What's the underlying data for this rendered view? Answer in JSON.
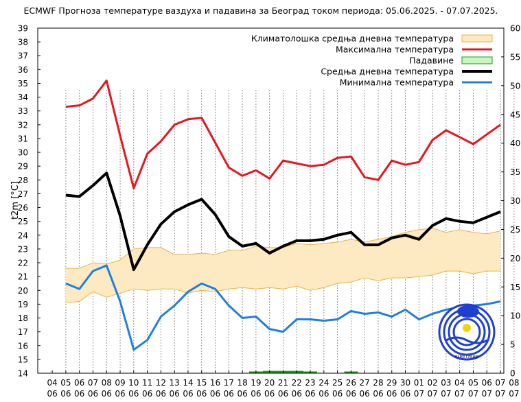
{
  "chart_data": {
    "type": "line",
    "title": "ECMWF Прогноза температуре ваздуха и падавина за Београд током периода: 05.06.2025. - 07.07.2025.",
    "ylabel": "t2m [°C]",
    "y2label": "",
    "ylim": [
      14,
      39
    ],
    "y2lim": [
      0,
      60
    ],
    "y_ticks": [
      "14",
      "15",
      "16",
      "17",
      "18",
      "19",
      "20",
      "21",
      "22",
      "23",
      "24",
      "25",
      "26",
      "27",
      "28",
      "29",
      "30",
      "31",
      "32",
      "33",
      "34",
      "35",
      "36",
      "37",
      "38",
      "39"
    ],
    "y2_ticks": [
      "0",
      "5",
      "10",
      "15",
      "20",
      "25",
      "30",
      "35",
      "40",
      "45",
      "50",
      "55",
      "60"
    ],
    "x_ticks": [
      {
        "day": "04",
        "month": "06"
      },
      {
        "day": "05",
        "month": "06"
      },
      {
        "day": "06",
        "month": "06"
      },
      {
        "day": "07",
        "month": "06"
      },
      {
        "day": "08",
        "month": "06"
      },
      {
        "day": "09",
        "month": "06"
      },
      {
        "day": "10",
        "month": "06"
      },
      {
        "day": "11",
        "month": "06"
      },
      {
        "day": "12",
        "month": "06"
      },
      {
        "day": "13",
        "month": "06"
      },
      {
        "day": "14",
        "month": "06"
      },
      {
        "day": "15",
        "month": "06"
      },
      {
        "day": "16",
        "month": "06"
      },
      {
        "day": "17",
        "month": "06"
      },
      {
        "day": "18",
        "month": "06"
      },
      {
        "day": "19",
        "month": "06"
      },
      {
        "day": "20",
        "month": "06"
      },
      {
        "day": "21",
        "month": "06"
      },
      {
        "day": "22",
        "month": "06"
      },
      {
        "day": "23",
        "month": "06"
      },
      {
        "day": "24",
        "month": "06"
      },
      {
        "day": "25",
        "month": "06"
      },
      {
        "day": "26",
        "month": "06"
      },
      {
        "day": "27",
        "month": "06"
      },
      {
        "day": "28",
        "month": "06"
      },
      {
        "day": "29",
        "month": "06"
      },
      {
        "day": "30",
        "month": "06"
      },
      {
        "day": "01",
        "month": "07"
      },
      {
        "day": "02",
        "month": "07"
      },
      {
        "day": "03",
        "month": "07"
      },
      {
        "day": "04",
        "month": "07"
      },
      {
        "day": "05",
        "month": "07"
      },
      {
        "day": "06",
        "month": "07"
      },
      {
        "day": "07",
        "month": "07"
      },
      {
        "day": "08",
        "month": "07"
      }
    ],
    "legend_position": "top-right",
    "grid": "vertical dotted",
    "colors": {
      "max": "#e8141c",
      "mean": "#000000",
      "min": "#1f7fe0",
      "clim_fill": "#fde9c2",
      "clim_edge": "#e6b54a",
      "precip": "#18a018"
    },
    "series": [
      {
        "name": "Климатолошка средња дневна температура",
        "kind": "band",
        "x": [
          "05.06",
          "06.06",
          "07.06",
          "08.06",
          "09.06",
          "10.06",
          "11.06",
          "12.06",
          "13.06",
          "14.06",
          "15.06",
          "16.06",
          "17.06",
          "18.06",
          "19.06",
          "20.06",
          "21.06",
          "22.06",
          "23.06",
          "24.06",
          "25.06",
          "26.06",
          "27.06",
          "28.06",
          "29.06",
          "30.06",
          "01.07",
          "02.07",
          "03.07",
          "04.07",
          "05.07",
          "06.07",
          "07.07"
        ],
        "upper": [
          21.6,
          21.6,
          22.0,
          21.9,
          22.2,
          23.0,
          23.1,
          23.1,
          22.6,
          22.6,
          22.7,
          22.6,
          22.9,
          22.9,
          23.2,
          23.1,
          23.1,
          23.4,
          23.3,
          23.4,
          23.5,
          23.7,
          23.5,
          23.7,
          23.9,
          24.2,
          24.4,
          24.5,
          24.2,
          24.4,
          24.2,
          24.1,
          24.3
        ],
        "lower": [
          19.1,
          19.2,
          19.9,
          19.5,
          19.8,
          20.1,
          20.0,
          20.1,
          20.1,
          19.8,
          20.0,
          19.9,
          20.1,
          20.2,
          20.1,
          20.2,
          20.1,
          20.3,
          20.0,
          20.2,
          20.5,
          20.6,
          20.9,
          20.7,
          20.9,
          20.9,
          21.0,
          21.1,
          21.4,
          21.4,
          21.2,
          21.4,
          21.4
        ]
      },
      {
        "name": "Максимална температура",
        "kind": "line",
        "x": [
          "05.06",
          "06.06",
          "07.06",
          "08.06",
          "09.06",
          "10.06",
          "11.06",
          "12.06",
          "13.06",
          "14.06",
          "15.06",
          "16.06",
          "17.06",
          "18.06",
          "19.06",
          "20.06",
          "21.06",
          "22.06",
          "23.06",
          "24.06",
          "25.06",
          "26.06",
          "27.06",
          "28.06",
          "29.06",
          "30.06",
          "01.07",
          "02.07",
          "03.07",
          "04.07",
          "05.07",
          "06.07",
          "07.07"
        ],
        "values": [
          33.3,
          33.4,
          33.9,
          35.2,
          31.2,
          27.4,
          29.9,
          30.8,
          32.0,
          32.4,
          32.5,
          30.7,
          28.9,
          28.3,
          28.7,
          28.1,
          29.4,
          29.2,
          29.0,
          29.1,
          29.6,
          29.7,
          28.2,
          28.0,
          29.4,
          29.1,
          29.3,
          30.9,
          31.6,
          31.1,
          30.6,
          31.3,
          32.0
        ]
      },
      {
        "name": "Падавине",
        "kind": "bar",
        "axis": "right",
        "x": [
          "19.06",
          "20.06",
          "21.06",
          "22.06",
          "23.06",
          "26.06"
        ],
        "values": [
          0.3,
          0.4,
          0.4,
          0.4,
          0.3,
          0.3
        ]
      },
      {
        "name": "Средња дневна температура",
        "kind": "line",
        "x": [
          "05.06",
          "06.06",
          "07.06",
          "08.06",
          "09.06",
          "10.06",
          "11.06",
          "12.06",
          "13.06",
          "14.06",
          "15.06",
          "16.06",
          "17.06",
          "18.06",
          "19.06",
          "20.06",
          "21.06",
          "22.06",
          "23.06",
          "24.06",
          "25.06",
          "26.06",
          "27.06",
          "28.06",
          "29.06",
          "30.06",
          "01.07",
          "02.07",
          "03.07",
          "04.07",
          "05.07",
          "06.07",
          "07.07"
        ],
        "values": [
          26.9,
          26.8,
          27.6,
          28.5,
          25.4,
          21.5,
          23.3,
          24.8,
          25.7,
          26.2,
          26.6,
          25.5,
          23.9,
          23.2,
          23.4,
          22.7,
          23.2,
          23.6,
          23.6,
          23.7,
          24.0,
          24.2,
          23.3,
          23.3,
          23.8,
          24.0,
          23.7,
          24.7,
          25.2,
          25.0,
          24.9,
          25.3,
          25.7
        ]
      },
      {
        "name": "Минимална температура",
        "kind": "line",
        "x": [
          "05.06",
          "06.06",
          "07.06",
          "08.06",
          "09.06",
          "10.06",
          "11.06",
          "12.06",
          "13.06",
          "14.06",
          "15.06",
          "16.06",
          "17.06",
          "18.06",
          "19.06",
          "20.06",
          "21.06",
          "22.06",
          "23.06",
          "24.06",
          "25.06",
          "26.06",
          "27.06",
          "28.06",
          "29.06",
          "30.06",
          "01.07",
          "02.07",
          "03.07",
          "04.07",
          "05.07",
          "06.07",
          "07.07"
        ],
        "values": [
          20.5,
          20.1,
          21.4,
          21.8,
          19.2,
          15.7,
          16.4,
          18.1,
          18.9,
          19.9,
          20.5,
          20.1,
          18.9,
          18.0,
          18.1,
          17.2,
          17.0,
          17.9,
          17.9,
          17.8,
          17.9,
          18.5,
          18.3,
          18.4,
          18.1,
          18.6,
          17.9,
          18.3,
          18.6,
          18.8,
          18.9,
          19.0,
          19.2
        ]
      }
    ]
  },
  "logo": {
    "text": "РХМЗ СРБИЈЕ",
    "colors": [
      "#1f3fd0",
      "#f5d400"
    ]
  }
}
